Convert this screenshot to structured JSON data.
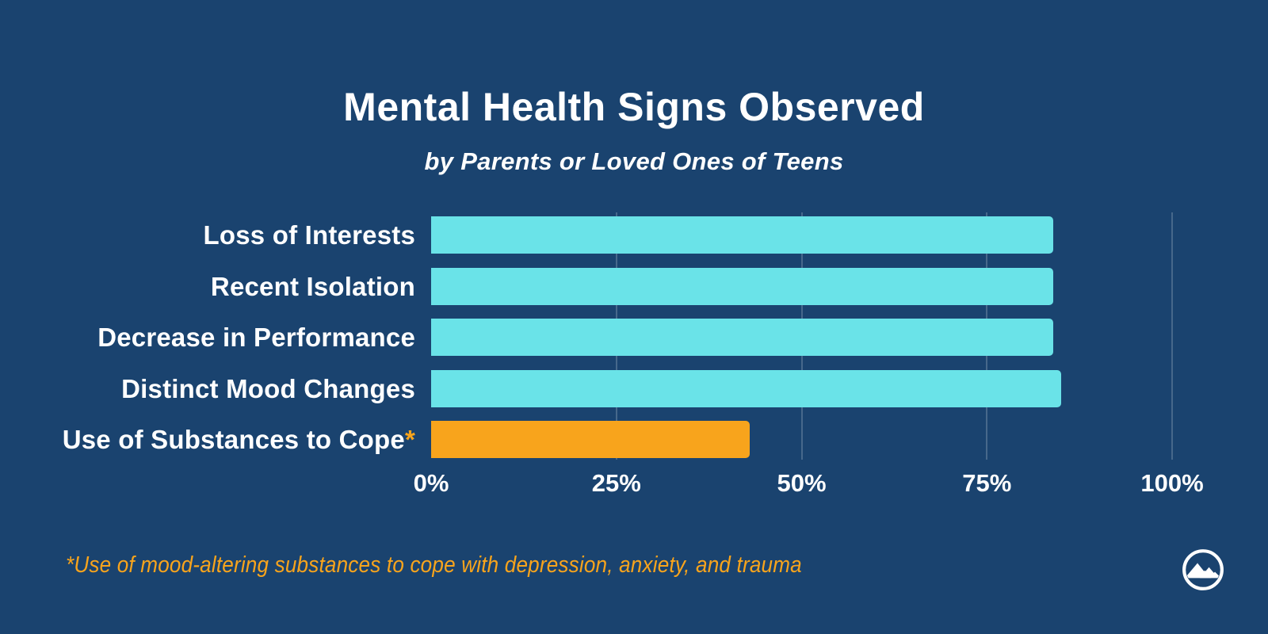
{
  "header": {
    "title": "Mental Health Signs Observed",
    "subtitle": "by Parents or Loved Ones of Teens"
  },
  "chart_data": {
    "type": "bar",
    "orientation": "horizontal",
    "title": "Mental Health Signs Observed",
    "subtitle": "by Parents or Loved Ones of Teens",
    "categories": [
      "Loss of Interests",
      "Recent Isolation",
      "Decrease in Performance",
      "Distinct Mood Changes",
      "Use of Substances to Cope"
    ],
    "category_markers": [
      "",
      "",
      "",
      "",
      "*"
    ],
    "values": [
      84,
      84,
      84,
      85,
      43
    ],
    "unit": "%",
    "bar_colors": [
      "#6AE3E8",
      "#6AE3E8",
      "#6AE3E8",
      "#6AE3E8",
      "#F8A41C"
    ],
    "x_ticks": [
      0,
      25,
      50,
      75,
      100
    ],
    "x_tick_labels": [
      "0%",
      "25%",
      "50%",
      "75%",
      "100%"
    ],
    "xlim": [
      0,
      100
    ],
    "grid": "vertical lines at 25/50/75/100 behind bars",
    "legend": "none"
  },
  "footnote": {
    "text": "*Use of mood-altering substances to cope with depression, anxiety, and trauma"
  },
  "logo": {
    "name": "mountain-circle-logo"
  },
  "colors": {
    "background": "#1A436F",
    "bar_teal": "#6AE3E8",
    "bar_orange": "#F8A41C",
    "text_white": "#FFFFFF",
    "accent_orange": "#F8A41C",
    "gridline": "rgba(255,255,255,0.20)"
  }
}
